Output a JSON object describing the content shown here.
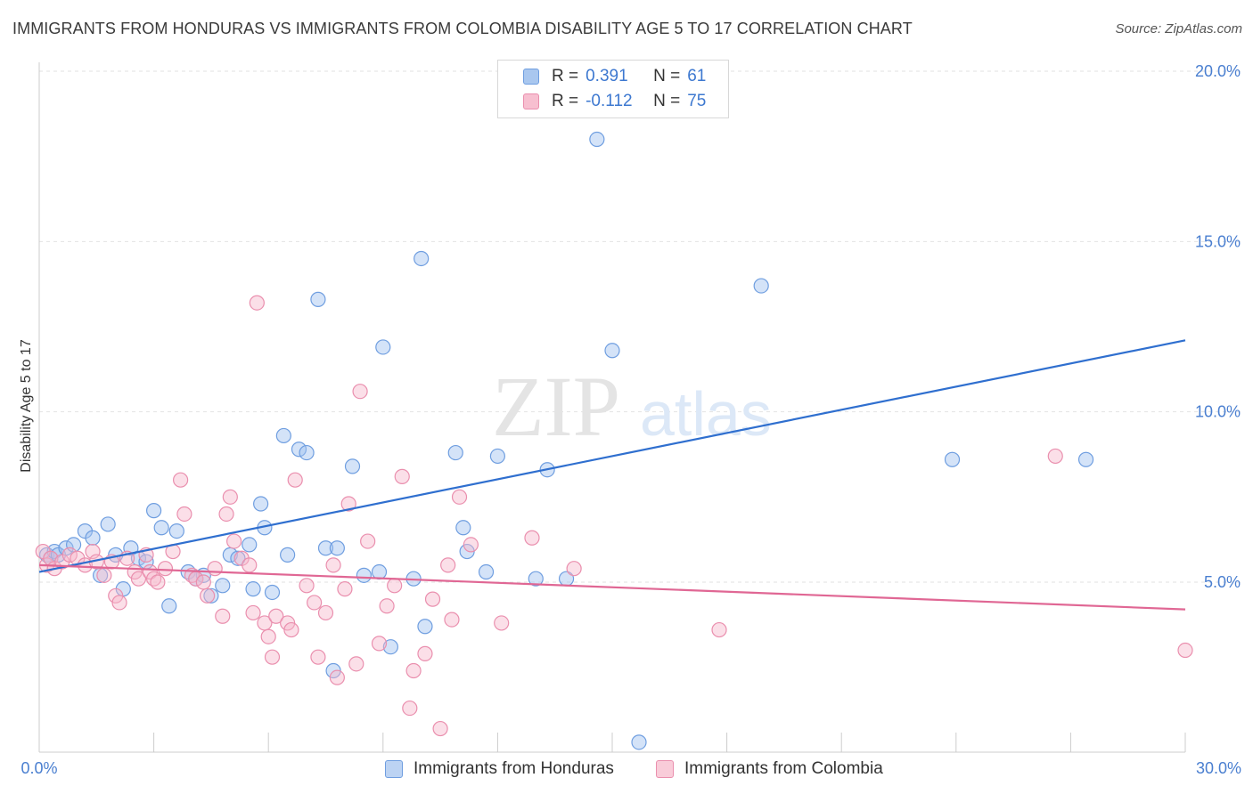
{
  "title": "IMMIGRANTS FROM HONDURAS VS IMMIGRANTS FROM COLOMBIA DISABILITY AGE 5 TO 17 CORRELATION CHART",
  "source": "Source: ZipAtlas.com",
  "watermark": {
    "zip": "ZIP",
    "atlas": "atlas"
  },
  "legend": {
    "rows": [
      {
        "r_label": "R =",
        "r_value": "0.391",
        "n_label": "N =",
        "n_value": "61",
        "color": "#a9c7ef",
        "border": "#6f9ee0"
      },
      {
        "r_label": "R =",
        "r_value": "-0.112",
        "n_label": "N =",
        "n_value": "75",
        "color": "#f7bfd0",
        "border": "#ea8fae"
      }
    ]
  },
  "bottom_legend": [
    {
      "label": "Immigrants from Honduras",
      "color": "#bcd3f3",
      "border": "#6f9ee0"
    },
    {
      "label": "Immigrants from Colombia",
      "color": "#f9ccd9",
      "border": "#ea8fae"
    }
  ],
  "chart_data": {
    "type": "scatter",
    "title": "IMMIGRANTS FROM HONDURAS VS IMMIGRANTS FROM COLOMBIA DISABILITY AGE 5 TO 17 CORRELATION CHART",
    "xlabel": "",
    "ylabel": "Disability Age 5 to 17",
    "xlim": [
      0,
      30
    ],
    "ylim": [
      0,
      20.5
    ],
    "x_tick_labels": [
      "0.0%",
      "30.0%"
    ],
    "y_ticks": [
      5,
      10,
      15,
      20
    ],
    "y_tick_labels": [
      "5.0%",
      "10.0%",
      "15.0%",
      "20.0%"
    ],
    "grid": true,
    "series": [
      {
        "name": "Immigrants from Honduras",
        "color": "#6f9ee0",
        "fill": "rgba(160,193,240,0.45)",
        "trend_color": "#2f6fcf",
        "trend": {
          "x": [
            0,
            30
          ],
          "y": [
            5.3,
            12.1
          ]
        },
        "points": [
          [
            0.2,
            5.8
          ],
          [
            0.3,
            5.7
          ],
          [
            0.4,
            5.9
          ],
          [
            0.5,
            5.8
          ],
          [
            0.7,
            6.0
          ],
          [
            0.9,
            6.1
          ],
          [
            1.2,
            6.5
          ],
          [
            1.4,
            6.3
          ],
          [
            1.6,
            5.2
          ],
          [
            1.8,
            6.7
          ],
          [
            2.0,
            5.8
          ],
          [
            2.2,
            4.8
          ],
          [
            2.4,
            6.0
          ],
          [
            2.6,
            5.7
          ],
          [
            2.8,
            5.6
          ],
          [
            3.0,
            7.1
          ],
          [
            3.2,
            6.6
          ],
          [
            3.4,
            4.3
          ],
          [
            3.6,
            6.5
          ],
          [
            3.9,
            5.3
          ],
          [
            4.1,
            5.1
          ],
          [
            4.3,
            5.2
          ],
          [
            4.5,
            4.6
          ],
          [
            4.8,
            4.9
          ],
          [
            5.0,
            5.8
          ],
          [
            5.2,
            5.7
          ],
          [
            5.5,
            6.1
          ],
          [
            5.6,
            4.8
          ],
          [
            5.8,
            7.3
          ],
          [
            5.9,
            6.6
          ],
          [
            6.1,
            4.7
          ],
          [
            6.4,
            9.3
          ],
          [
            6.5,
            5.8
          ],
          [
            6.8,
            8.9
          ],
          [
            7.0,
            8.8
          ],
          [
            7.3,
            13.3
          ],
          [
            7.5,
            6.0
          ],
          [
            7.7,
            2.4
          ],
          [
            7.8,
            6.0
          ],
          [
            8.2,
            8.4
          ],
          [
            8.5,
            5.2
          ],
          [
            8.9,
            5.3
          ],
          [
            9.0,
            11.9
          ],
          [
            9.2,
            3.1
          ],
          [
            9.8,
            5.1
          ],
          [
            10.0,
            14.5
          ],
          [
            10.1,
            3.7
          ],
          [
            10.9,
            8.8
          ],
          [
            11.1,
            6.6
          ],
          [
            11.2,
            5.9
          ],
          [
            11.7,
            5.3
          ],
          [
            12.0,
            8.7
          ],
          [
            13.0,
            5.1
          ],
          [
            13.3,
            8.3
          ],
          [
            13.8,
            5.1
          ],
          [
            14.6,
            18.0
          ],
          [
            15.0,
            11.8
          ],
          [
            15.7,
            0.3
          ],
          [
            18.9,
            13.7
          ],
          [
            23.9,
            8.6
          ],
          [
            27.4,
            8.6
          ]
        ]
      },
      {
        "name": "Immigrants from Colombia",
        "color": "#ea8fae",
        "fill": "rgba(246,184,203,0.45)",
        "trend_color": "#e06794",
        "trend": {
          "x": [
            0,
            30
          ],
          "y": [
            5.5,
            4.2
          ]
        },
        "points": [
          [
            0.1,
            5.9
          ],
          [
            0.2,
            5.5
          ],
          [
            0.3,
            5.7
          ],
          [
            0.4,
            5.4
          ],
          [
            0.6,
            5.6
          ],
          [
            0.8,
            5.8
          ],
          [
            1.0,
            5.7
          ],
          [
            1.2,
            5.5
          ],
          [
            1.4,
            5.9
          ],
          [
            1.5,
            5.6
          ],
          [
            1.7,
            5.2
          ],
          [
            1.9,
            5.6
          ],
          [
            2.0,
            4.6
          ],
          [
            2.1,
            4.4
          ],
          [
            2.3,
            5.7
          ],
          [
            2.5,
            5.3
          ],
          [
            2.6,
            5.1
          ],
          [
            2.8,
            5.8
          ],
          [
            2.9,
            5.3
          ],
          [
            3.0,
            5.1
          ],
          [
            3.1,
            5.0
          ],
          [
            3.3,
            5.4
          ],
          [
            3.5,
            5.9
          ],
          [
            3.7,
            8.0
          ],
          [
            3.8,
            7.0
          ],
          [
            4.0,
            5.2
          ],
          [
            4.1,
            5.1
          ],
          [
            4.3,
            5.0
          ],
          [
            4.4,
            4.6
          ],
          [
            4.6,
            5.4
          ],
          [
            4.8,
            4.0
          ],
          [
            4.9,
            7.0
          ],
          [
            5.0,
            7.5
          ],
          [
            5.1,
            6.2
          ],
          [
            5.3,
            5.7
          ],
          [
            5.5,
            5.5
          ],
          [
            5.6,
            4.1
          ],
          [
            5.7,
            13.2
          ],
          [
            5.9,
            3.8
          ],
          [
            6.0,
            3.4
          ],
          [
            6.1,
            2.8
          ],
          [
            6.2,
            4.0
          ],
          [
            6.5,
            3.8
          ],
          [
            6.6,
            3.6
          ],
          [
            6.7,
            8.0
          ],
          [
            7.0,
            4.9
          ],
          [
            7.2,
            4.4
          ],
          [
            7.3,
            2.8
          ],
          [
            7.5,
            4.1
          ],
          [
            7.7,
            5.5
          ],
          [
            7.8,
            2.2
          ],
          [
            8.0,
            4.8
          ],
          [
            8.1,
            7.3
          ],
          [
            8.3,
            2.6
          ],
          [
            8.4,
            10.6
          ],
          [
            8.6,
            6.2
          ],
          [
            8.9,
            3.2
          ],
          [
            9.1,
            4.3
          ],
          [
            9.3,
            4.9
          ],
          [
            9.5,
            8.1
          ],
          [
            9.7,
            1.3
          ],
          [
            9.8,
            2.4
          ],
          [
            10.1,
            2.9
          ],
          [
            10.3,
            4.5
          ],
          [
            10.5,
            0.7
          ],
          [
            10.7,
            5.5
          ],
          [
            10.8,
            3.9
          ],
          [
            11.0,
            7.5
          ],
          [
            11.3,
            6.1
          ],
          [
            12.1,
            3.8
          ],
          [
            12.9,
            6.3
          ],
          [
            14.0,
            5.4
          ],
          [
            17.8,
            3.6
          ],
          [
            26.6,
            8.7
          ],
          [
            30.0,
            3.0
          ]
        ]
      }
    ]
  }
}
